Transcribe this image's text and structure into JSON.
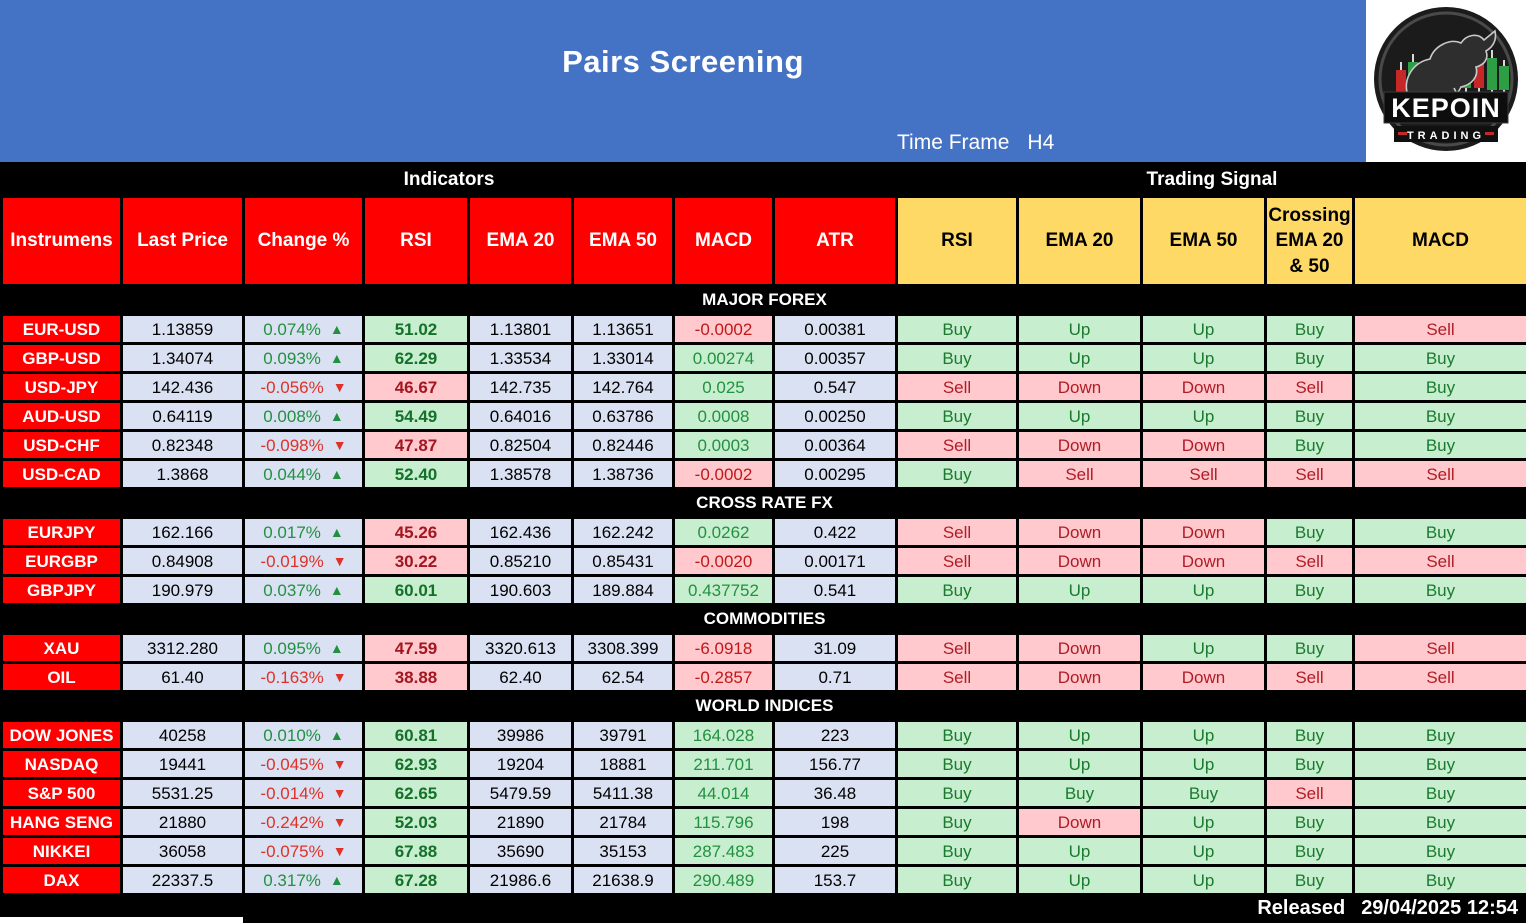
{
  "banner": {
    "title": "Pairs Screening",
    "timeframe_label": "Time Frame",
    "timeframe_value": "H4",
    "logo": {
      "name": "KEPOIN",
      "sub": "TRADING"
    }
  },
  "glyphs": {
    "up": "▲",
    "down": "▼"
  },
  "colors": {
    "banner_blue": "#4472c4",
    "header_red": "#ff0000",
    "header_yellow": "#ffd966",
    "cell_lavender": "#d9e1f2",
    "cell_green": "#c7eecf",
    "cell_pink": "#ffc9cd",
    "text_green": "#1b7a2f",
    "text_red": "#b01c26"
  },
  "table": {
    "groups": [
      {
        "label": "Indicators"
      },
      {
        "label": "Trading Signal"
      }
    ],
    "columns": [
      {
        "lines": [
          "Instrumens"
        ]
      },
      {
        "lines": [
          "Last Price"
        ]
      },
      {
        "lines": [
          "Change %"
        ]
      },
      {
        "lines": [
          "RSI"
        ]
      },
      {
        "lines": [
          "EMA 20"
        ]
      },
      {
        "lines": [
          "EMA 50"
        ]
      },
      {
        "lines": [
          "MACD"
        ]
      },
      {
        "lines": [
          "ATR"
        ]
      },
      {
        "lines": [
          "RSI"
        ]
      },
      {
        "lines": [
          "EMA 20"
        ]
      },
      {
        "lines": [
          "EMA 50"
        ]
      },
      {
        "lines": [
          "Crossing",
          "EMA  20",
          "& 50"
        ]
      },
      {
        "lines": [
          "MACD"
        ]
      }
    ],
    "sections": [
      {
        "title": "MAJOR FOREX",
        "rows": [
          {
            "instrument": "EUR-USD",
            "last_price": "1.13859",
            "change": "0.074%",
            "rsi": "51.02",
            "ema20": "1.13801",
            "ema50": "1.13651",
            "macd": "-0.0002",
            "atr": "0.00381",
            "signals": [
              "Buy",
              "Up",
              "Up",
              "Buy",
              "Sell"
            ]
          },
          {
            "instrument": "GBP-USD",
            "last_price": "1.34074",
            "change": "0.093%",
            "rsi": "62.29",
            "ema20": "1.33534",
            "ema50": "1.33014",
            "macd": "0.00274",
            "atr": "0.00357",
            "signals": [
              "Buy",
              "Up",
              "Up",
              "Buy",
              "Buy"
            ]
          },
          {
            "instrument": "USD-JPY",
            "last_price": "142.436",
            "change": "-0.056%",
            "rsi": "46.67",
            "ema20": "142.735",
            "ema50": "142.764",
            "macd": "0.025",
            "atr": "0.547",
            "signals": [
              "Sell",
              "Down",
              "Down",
              "Sell",
              "Buy"
            ]
          },
          {
            "instrument": "AUD-USD",
            "last_price": "0.64119",
            "change": "0.008%",
            "rsi": "54.49",
            "ema20": "0.64016",
            "ema50": "0.63786",
            "macd": "0.0008",
            "atr": "0.00250",
            "signals": [
              "Buy",
              "Up",
              "Up",
              "Buy",
              "Buy"
            ]
          },
          {
            "instrument": "USD-CHF",
            "last_price": "0.82348",
            "change": "-0.098%",
            "rsi": "47.87",
            "ema20": "0.82504",
            "ema50": "0.82446",
            "macd": "0.0003",
            "atr": "0.00364",
            "signals": [
              "Sell",
              "Down",
              "Down",
              "Buy",
              "Buy"
            ]
          },
          {
            "instrument": "USD-CAD",
            "last_price": "1.3868",
            "change": "0.044%",
            "rsi": "52.40",
            "ema20": "1.38578",
            "ema50": "1.38736",
            "macd": "-0.0002",
            "atr": "0.00295",
            "signals": [
              "Buy",
              "Sell",
              "Sell",
              "Sell",
              "Sell"
            ]
          }
        ]
      },
      {
        "title": "CROSS RATE FX",
        "rows": [
          {
            "instrument": "EURJPY",
            "last_price": "162.166",
            "change": "0.017%",
            "rsi": "45.26",
            "ema20": "162.436",
            "ema50": "162.242",
            "macd": "0.0262",
            "atr": "0.422",
            "signals": [
              "Sell",
              "Down",
              "Down",
              "Buy",
              "Buy"
            ]
          },
          {
            "instrument": "EURGBP",
            "last_price": "0.84908",
            "change": "-0.019%",
            "rsi": "30.22",
            "ema20": "0.85210",
            "ema50": "0.85431",
            "macd": "-0.0020",
            "atr": "0.00171",
            "signals": [
              "Sell",
              "Down",
              "Down",
              "Sell",
              "Sell"
            ]
          },
          {
            "instrument": "GBPJPY",
            "last_price": "190.979",
            "change": "0.037%",
            "rsi": "60.01",
            "ema20": "190.603",
            "ema50": "189.884",
            "macd": "0.437752",
            "atr": "0.541",
            "signals": [
              "Buy",
              "Up",
              "Up",
              "Buy",
              "Buy"
            ]
          }
        ]
      },
      {
        "title": "COMMODITIES",
        "rows": [
          {
            "instrument": "XAU",
            "last_price": "3312.280",
            "change": "0.095%",
            "rsi": "47.59",
            "ema20": "3320.613",
            "ema50": "3308.399",
            "macd": "-6.0918",
            "atr": "31.09",
            "signals": [
              "Sell",
              "Down",
              "Up",
              "Buy",
              "Sell"
            ]
          },
          {
            "instrument": "OIL",
            "last_price": "61.40",
            "change": "-0.163%",
            "rsi": "38.88",
            "ema20": "62.40",
            "ema50": "62.54",
            "macd": "-0.2857",
            "atr": "0.71",
            "signals": [
              "Sell",
              "Down",
              "Down",
              "Sell",
              "Sell"
            ]
          }
        ]
      },
      {
        "title": "WORLD INDICES",
        "rows": [
          {
            "instrument": "DOW JONES",
            "last_price": "40258",
            "change": "0.010%",
            "rsi": "60.81",
            "ema20": "39986",
            "ema50": "39791",
            "macd": "164.028",
            "atr": "223",
            "signals": [
              "Buy",
              "Up",
              "Up",
              "Buy",
              "Buy"
            ]
          },
          {
            "instrument": "NASDAQ",
            "last_price": "19441",
            "change": "-0.045%",
            "rsi": "62.93",
            "ema20": "19204",
            "ema50": "18881",
            "macd": "211.701",
            "atr": "156.77",
            "signals": [
              "Buy",
              "Up",
              "Up",
              "Buy",
              "Buy"
            ]
          },
          {
            "instrument": "S&P 500",
            "last_price": "5531.25",
            "change": "-0.014%",
            "rsi": "62.65",
            "ema20": "5479.59",
            "ema50": "5411.38",
            "macd": "44.014",
            "atr": "36.48",
            "signals": [
              "Buy",
              "Buy",
              "Buy",
              "Sell",
              "Buy"
            ]
          },
          {
            "instrument": "HANG SENG",
            "last_price": "21880",
            "change": "-0.242%",
            "rsi": "52.03",
            "ema20": "21890",
            "ema50": "21784",
            "macd": "115.796",
            "atr": "198",
            "signals": [
              "Buy",
              "Down",
              "Up",
              "Buy",
              "Buy"
            ]
          },
          {
            "instrument": "NIKKEI",
            "last_price": "36058",
            "change": "-0.075%",
            "rsi": "67.88",
            "ema20": "35690",
            "ema50": "35153",
            "macd": "287.483",
            "atr": "225",
            "signals": [
              "Buy",
              "Up",
              "Up",
              "Buy",
              "Buy"
            ]
          },
          {
            "instrument": "DAX",
            "last_price": "22337.5",
            "change": "0.317%",
            "rsi": "67.28",
            "ema20": "21986.6",
            "ema50": "21638.9",
            "macd": "290.489",
            "atr": "153.7",
            "signals": [
              "Buy",
              "Up",
              "Up",
              "Buy",
              "Buy"
            ]
          }
        ]
      }
    ]
  },
  "footer": {
    "released_label": "Released",
    "released_value": "29/04/2025 12:54"
  }
}
